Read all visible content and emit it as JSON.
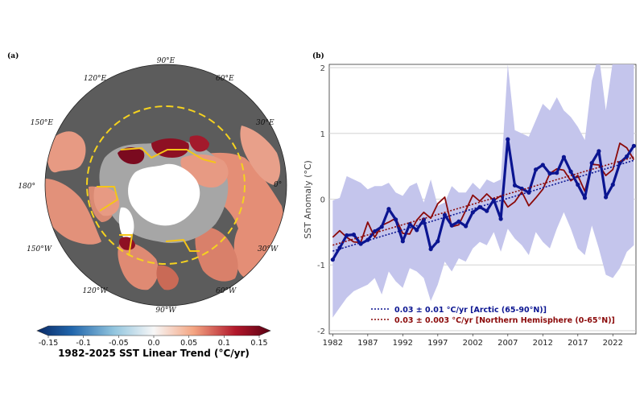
{
  "panel_a": {
    "label": "(a)",
    "lon_labels": [
      "90°E",
      "60°E",
      "30°E",
      "0°",
      "30°W",
      "60°W",
      "90°W",
      "120°W",
      "150°W",
      "180°",
      "150°E",
      "120°E"
    ],
    "colorbar": {
      "ticks": [
        "-0.15",
        "-0.1",
        "-0.05",
        "0.0",
        "0.05",
        "0.1",
        "0.15"
      ],
      "title": "1982-2025 SST Linear Trend (°C/yr)",
      "range": [
        -0.15,
        0.15
      ]
    },
    "colors": {
      "land": "#5c5c5c",
      "sea_ice": "#ffffff",
      "masked_ocean": "#a6a6a6",
      "warming_ocean": "#e79a83",
      "strong_warming": "#7a0a1f",
      "arctic_circle": "#f5d21f",
      "region_boundary": "#f5c518"
    }
  },
  "panel_b": {
    "label": "(b)"
  },
  "chart_data": {
    "type": "line",
    "title": "",
    "xlabel": "",
    "ylabel": "SST Anomaly (°C)",
    "xlim": [
      1981.5,
      2025.3
    ],
    "ylim": [
      -2.05,
      2.05
    ],
    "xticks": [
      1982,
      1987,
      1992,
      1997,
      2002,
      2007,
      2012,
      2017,
      2022
    ],
    "yticks": [
      -2,
      -1,
      0,
      1,
      2
    ],
    "grid": "horizontal",
    "legend_position": "lower-center",
    "x": [
      1982,
      1983,
      1984,
      1985,
      1986,
      1987,
      1988,
      1989,
      1990,
      1991,
      1992,
      1993,
      1994,
      1995,
      1996,
      1997,
      1998,
      1999,
      2000,
      2001,
      2002,
      2003,
      2004,
      2005,
      2006,
      2007,
      2008,
      2009,
      2010,
      2011,
      2012,
      2013,
      2014,
      2015,
      2016,
      2017,
      2018,
      2019,
      2020,
      2021,
      2022,
      2023,
      2024,
      2025
    ],
    "series": [
      {
        "name": "0.03 ± 0.01 °C/yr [Arctic (65-90°N)]",
        "color": "#0b1591",
        "values": [
          -0.92,
          -0.74,
          -0.55,
          -0.54,
          -0.68,
          -0.62,
          -0.49,
          -0.42,
          -0.15,
          -0.31,
          -0.64,
          -0.38,
          -0.47,
          -0.31,
          -0.76,
          -0.64,
          -0.24,
          -0.4,
          -0.34,
          -0.41,
          -0.2,
          -0.12,
          -0.18,
          -0.01,
          -0.3,
          0.91,
          0.21,
          0.16,
          0.1,
          0.45,
          0.52,
          0.39,
          0.4,
          0.64,
          0.42,
          0.22,
          0.02,
          0.55,
          0.73,
          0.03,
          0.22,
          0.55,
          0.65,
          0.81
        ],
        "band_upper": [
          -0.02,
          0.02,
          0.35,
          0.3,
          0.25,
          0.15,
          0.2,
          0.2,
          0.25,
          0.1,
          0.05,
          0.2,
          0.25,
          -0.05,
          0.3,
          -0.1,
          -0.05,
          0.2,
          0.1,
          0.1,
          0.25,
          0.15,
          0.3,
          0.25,
          0.3,
          2.05,
          1.05,
          1.0,
          0.95,
          1.2,
          1.45,
          1.35,
          1.55,
          1.35,
          1.25,
          1.1,
          0.9,
          1.8,
          2.2,
          1.35,
          2.1,
          2.1,
          2.25,
          2.35
        ],
        "band_lower": [
          -1.8,
          -1.65,
          -1.5,
          -1.4,
          -1.35,
          -1.3,
          -1.2,
          -1.45,
          -1.1,
          -1.25,
          -1.35,
          -1.05,
          -1.1,
          -1.2,
          -1.55,
          -1.3,
          -0.95,
          -1.1,
          -0.9,
          -0.95,
          -0.75,
          -0.65,
          -0.7,
          -0.5,
          -0.8,
          -0.45,
          -0.6,
          -0.7,
          -0.85,
          -0.5,
          -0.65,
          -0.75,
          -0.45,
          -0.2,
          -0.45,
          -0.75,
          -0.85,
          -0.4,
          -0.75,
          -1.15,
          -1.2,
          -1.05,
          -0.8,
          -0.7
        ],
        "trend_line": {
          "start": [
            1982,
            -0.79
          ],
          "end": [
            2025,
            0.59
          ]
        }
      },
      {
        "name": "0.03 ± 0.003 °C/yr [Northern Hemisphere (0-65°N)]",
        "color": "#8b0a0a",
        "values": [
          -0.58,
          -0.48,
          -0.58,
          -0.65,
          -0.66,
          -0.35,
          -0.58,
          -0.4,
          -0.35,
          -0.29,
          -0.52,
          -0.53,
          -0.32,
          -0.2,
          -0.29,
          -0.07,
          0.03,
          -0.42,
          -0.39,
          -0.17,
          0.06,
          -0.03,
          0.08,
          -0.02,
          0.05,
          -0.12,
          -0.04,
          0.11,
          -0.1,
          0.02,
          0.15,
          0.39,
          0.46,
          0.44,
          0.28,
          0.36,
          0.12,
          0.53,
          0.52,
          0.36,
          0.45,
          0.85,
          0.78,
          0.6
        ],
        "trend_line": {
          "start": [
            1982,
            -0.7
          ],
          "end": [
            2025,
            0.64
          ]
        }
      }
    ]
  }
}
